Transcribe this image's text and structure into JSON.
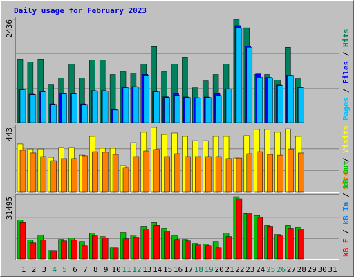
{
  "chart_data": {
    "type": "bar",
    "title": "Daily usage for February 2023",
    "categories": [
      "1",
      "2",
      "3",
      "4",
      "5",
      "6",
      "7",
      "8",
      "9",
      "10",
      "11",
      "12",
      "13",
      "14",
      "15",
      "16",
      "17",
      "18",
      "19",
      "20",
      "21",
      "22",
      "23",
      "24",
      "25",
      "26",
      "27",
      "28",
      "29",
      "30",
      "31"
    ],
    "xtick_colors": [
      "#000000",
      "#000000",
      "#000000",
      "#00805c",
      "#00805c",
      "#000000",
      "#000000",
      "#000000",
      "#000000",
      "#000000",
      "#00805c",
      "#00805c",
      "#000000",
      "#000000",
      "#000000",
      "#000000",
      "#000000",
      "#00805c",
      "#00805c",
      "#000000",
      "#000000",
      "#000000",
      "#000000",
      "#000000",
      "#00805c",
      "#00805c",
      "#000000",
      "#000000",
      "#000000",
      "#000000",
      "#000000"
    ],
    "legend_separator": " / ",
    "panels": [
      {
        "ylim": [
          0,
          2436
        ],
        "yticks": [
          2436
        ],
        "series": [
          {
            "name": "Pages",
            "color": "#00c0ff",
            "values": [
              774,
              658,
              724,
              428,
              675,
              675,
              428,
              741,
              741,
              296,
              823,
              839,
              1103,
              724,
              593,
              642,
              593,
              576,
              593,
              642,
              790,
              2238,
              1778,
              1070,
              1053,
              872,
              1103,
              823,
              null,
              null,
              null
            ]
          },
          {
            "name": "Files",
            "color": "#0000ff",
            "values": [
              790,
              670,
              740,
              440,
              690,
              690,
              440,
              755,
              755,
              310,
              835,
              850,
              1140,
              740,
              610,
              680,
              605,
              590,
              605,
              680,
              800,
              2290,
              1800,
              1150,
              1070,
              885,
              1115,
              835,
              null,
              null,
              null
            ]
          },
          {
            "name": "Hits",
            "color": "#00805c",
            "values": [
              1498,
              1432,
              1498,
              889,
              1053,
              1383,
              1053,
              1481,
              1481,
              1136,
              1202,
              1169,
              1383,
              1794,
              1202,
              1383,
              1531,
              823,
              988,
              1136,
              1383,
              2436,
              2238,
              1136,
              1136,
              1004,
              1778,
              1037,
              null,
              null,
              null
            ]
          }
        ]
      },
      {
        "ylim": [
          0,
          443
        ],
        "yticks": [
          443
        ],
        "series": [
          {
            "name": "Sites",
            "color": "#ff8000",
            "values": [
              286,
              267,
              243,
              214,
              229,
              229,
              248,
              276,
              272,
              257,
              167,
              243,
              281,
              291,
              243,
              262,
              243,
              243,
              243,
              243,
              229,
              233,
              262,
              276,
              257,
              252,
              295,
              267,
              null,
              null,
              null
            ]
          },
          {
            "name": "Visits",
            "color": "#ffff00",
            "values": [
              329,
              295,
              295,
              238,
              305,
              305,
              252,
              381,
              300,
              300,
              181,
              338,
              410,
              443,
              395,
              405,
              381,
              352,
              352,
              381,
              381,
              233,
              386,
              429,
              429,
              410,
              433,
              381,
              null,
              null,
              null
            ]
          }
        ]
      },
      {
        "ylim": [
          0,
          31495
        ],
        "yticks": [
          31495
        ],
        "series": [
          {
            "name": "kB F",
            "color": "#ff0000",
            "values": [
              18401,
              8139,
              9555,
              4247,
              9201,
              9555,
              6724,
              11678,
              10616,
              5662,
              10262,
              10970,
              15216,
              16986,
              14155,
              9909,
              9201,
              7077,
              6724,
              5662,
              11324,
              30433,
              23355,
              21232,
              16278,
              11678,
              15570,
              15216,
              null,
              null,
              null
            ]
          },
          {
            "name": "kB In",
            "color": "#0080ff",
            "values": [
              null,
              null,
              null,
              null,
              null,
              null,
              null,
              null,
              null,
              null,
              null,
              null,
              null,
              null,
              null,
              null,
              null,
              null,
              null,
              null,
              null,
              null,
              null,
              null,
              null,
              null,
              null,
              null,
              null,
              null,
              null
            ]
          },
          {
            "name": "kB Out",
            "color": "#00c000",
            "values": [
              19817,
              9555,
              12032,
              4247,
              9909,
              10616,
              8847,
              13093,
              11324,
              5662,
              13447,
              12032,
              16278,
              18401,
              15570,
              11678,
              9909,
              7785,
              7431,
              8847,
              13093,
              31495,
              23001,
              22000,
              16986,
              12385,
              16986,
              15924,
              null,
              null,
              null
            ]
          }
        ]
      }
    ]
  }
}
